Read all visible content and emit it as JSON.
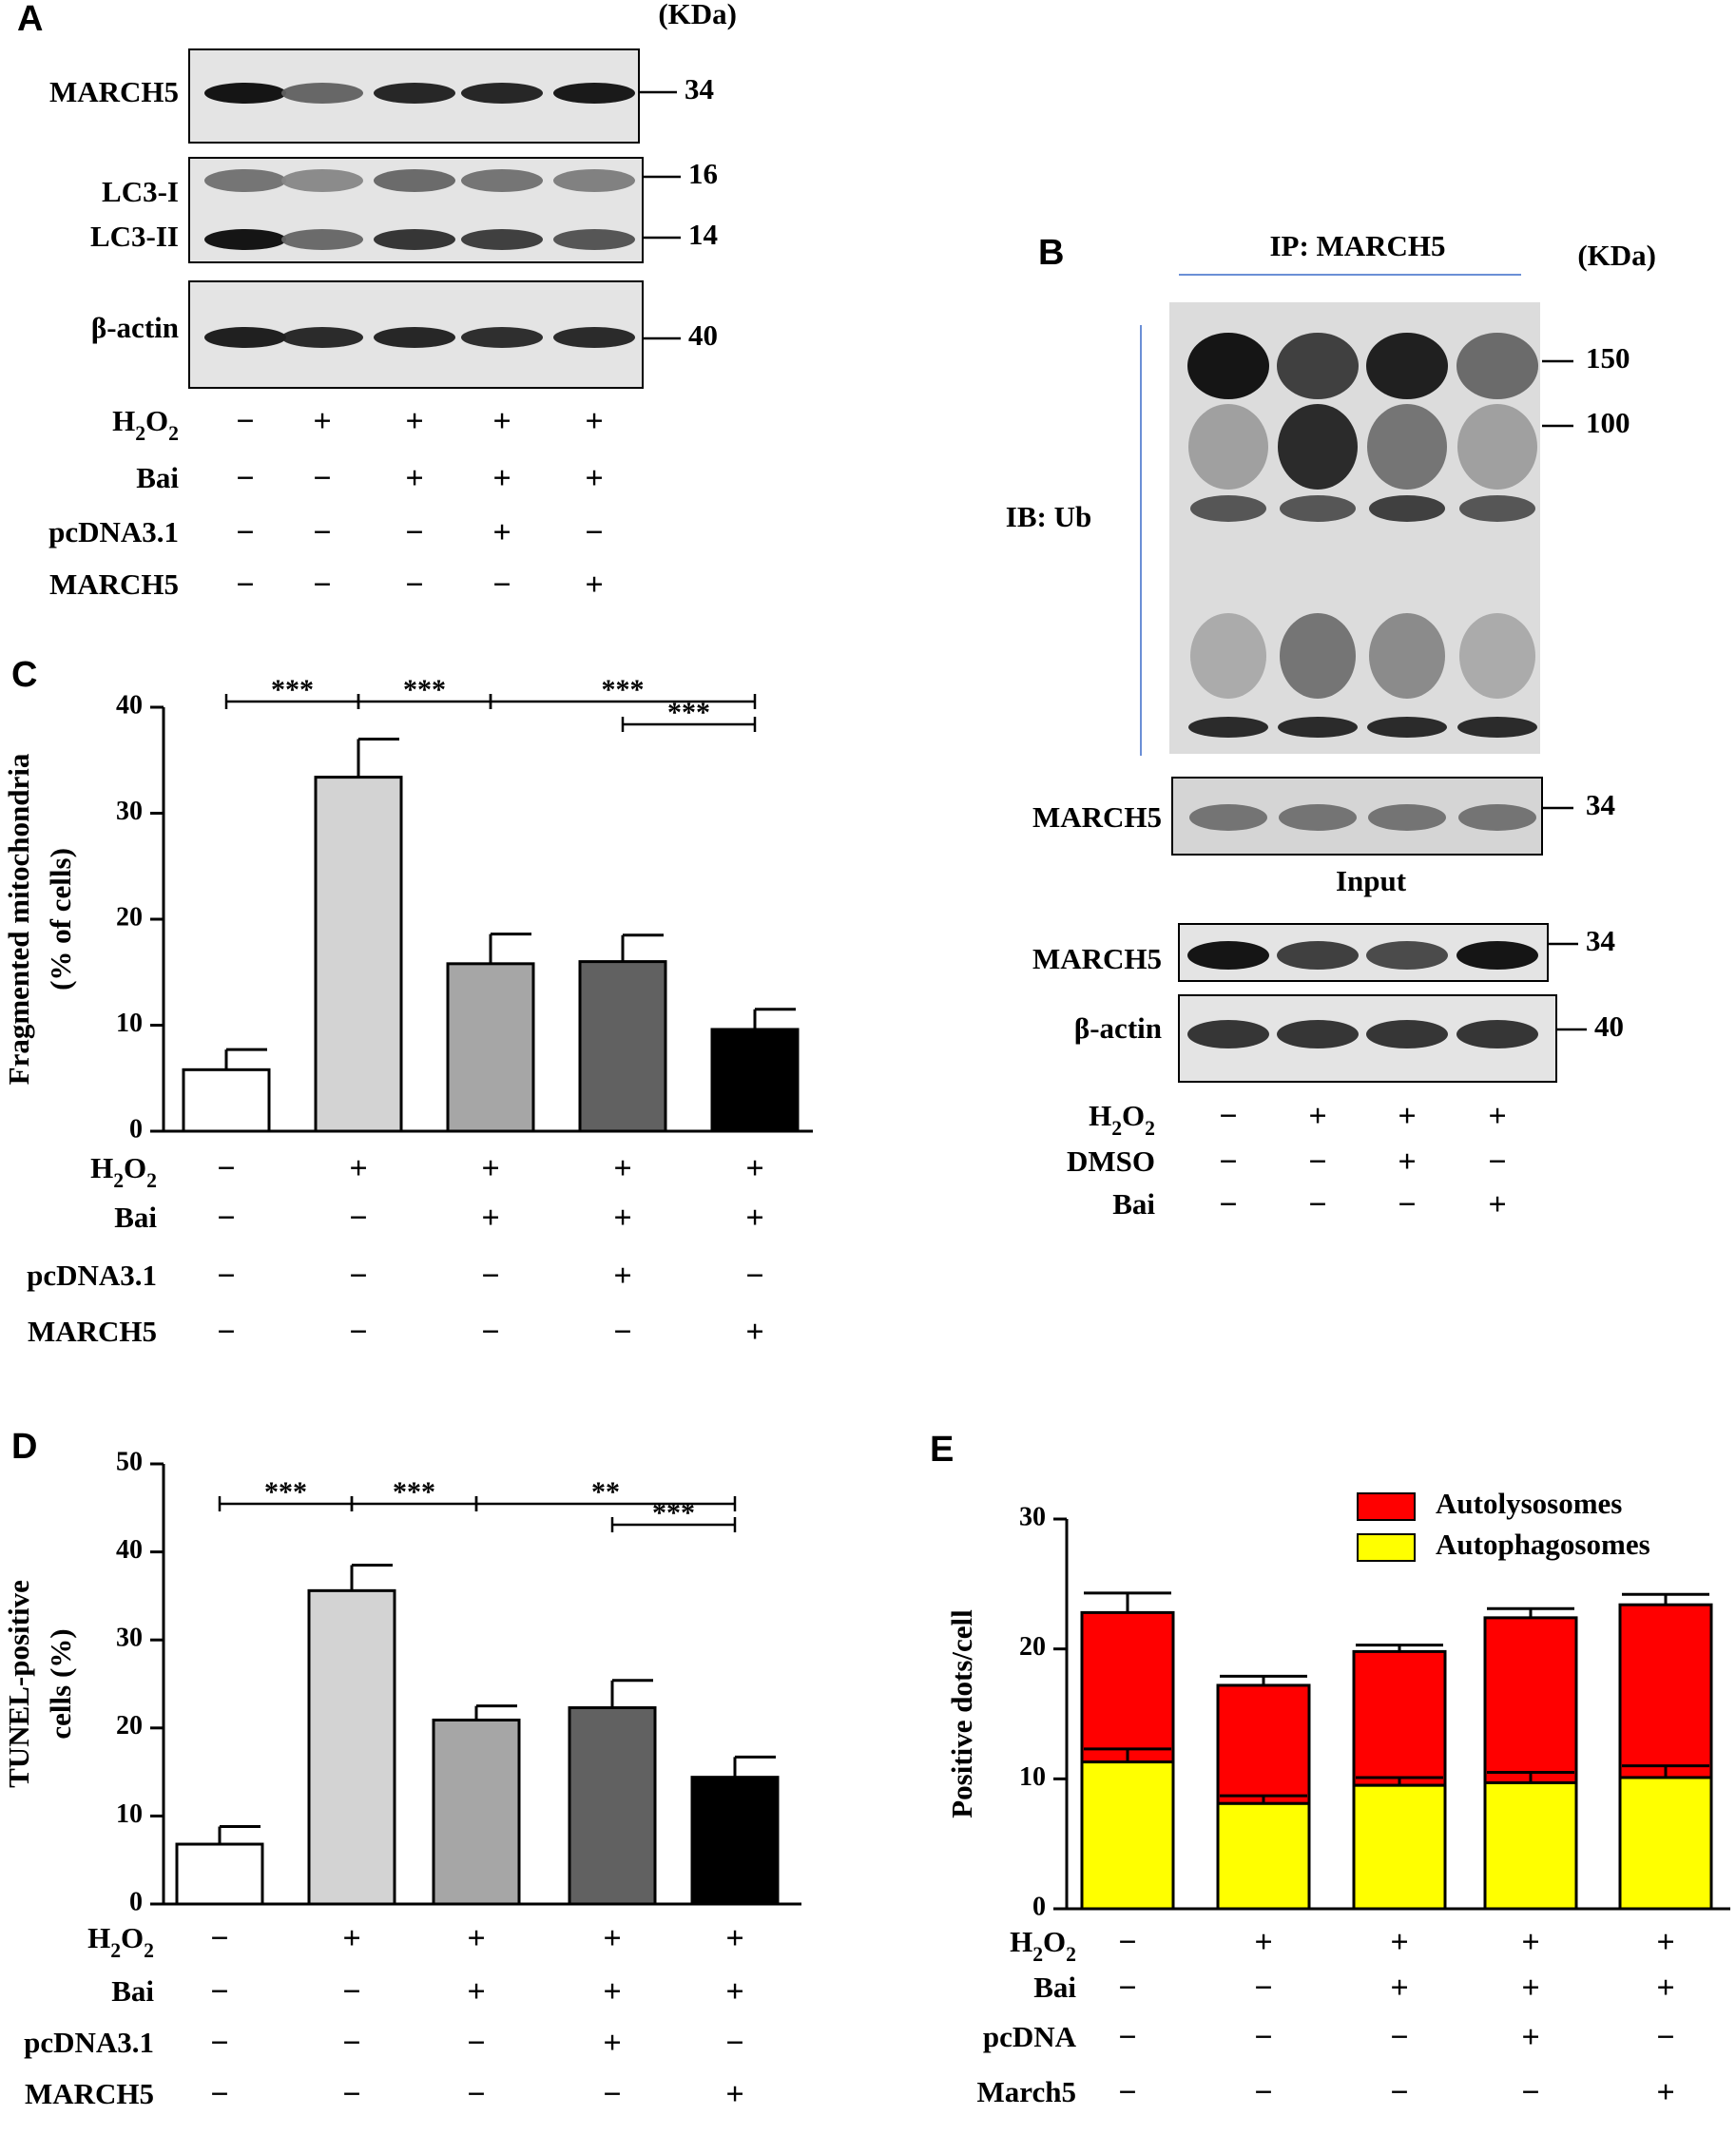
{
  "figure": {
    "panel_labels": [
      "A",
      "B",
      "C",
      "D",
      "E"
    ],
    "kda_label": "(KDa)",
    "panel_a": {
      "blots": [
        {
          "labels": [
            "MARCH5"
          ],
          "markers": [
            "34"
          ],
          "bands": [
            [
              1.0,
              0.62,
              0.92,
              0.92,
              0.98
            ]
          ]
        },
        {
          "labels": [
            "LC3-I",
            "LC3-II"
          ],
          "markers": [
            "16",
            "14"
          ],
          "bands": [
            [
              0.55,
              0.45,
              0.6,
              0.55,
              0.5
            ],
            [
              1.0,
              0.6,
              0.85,
              0.8,
              0.7
            ]
          ]
        },
        {
          "labels": [
            "β-actin"
          ],
          "markers": [
            "40"
          ],
          "bands": [
            [
              0.95,
              0.9,
              0.92,
              0.88,
              0.9
            ]
          ]
        }
      ],
      "conditions": [
        {
          "label": "H2O2",
          "values": [
            "−",
            "+",
            "+",
            "+",
            "+"
          ]
        },
        {
          "label": "Bai",
          "values": [
            "−",
            "−",
            "+",
            "+",
            "+"
          ]
        },
        {
          "label": "pcDNA3.1",
          "values": [
            "−",
            "−",
            "−",
            "+",
            "−"
          ]
        },
        {
          "label": "MARCH5",
          "values": [
            "−",
            "−",
            "−",
            "−",
            "+"
          ]
        }
      ]
    },
    "panel_b": {
      "ip_label": "IP: MARCH5",
      "ib_label": "IB: Ub",
      "ub_markers": [
        "150",
        "100"
      ],
      "ip_march5_label": "MARCH5",
      "ip_march5_marker": "34",
      "input_label": "Input",
      "input_blots": [
        {
          "label": "MARCH5",
          "marker": "34",
          "bands": [
            1.0,
            0.8,
            0.75,
            1.0
          ]
        },
        {
          "label": "β-actin",
          "marker": "40",
          "bands": [
            0.85,
            0.85,
            0.85,
            0.85
          ]
        }
      ],
      "conditions": [
        {
          "label": "H2O2",
          "values": [
            "−",
            "+",
            "+",
            "+"
          ]
        },
        {
          "label": "DMSO",
          "values": [
            "−",
            "−",
            "+",
            "−"
          ]
        },
        {
          "label": "Bai",
          "values": [
            "−",
            "−",
            "−",
            "+"
          ]
        }
      ]
    }
  },
  "chart_data": [
    {
      "panel": "C",
      "type": "bar",
      "ylabel": [
        "Fragmented mitochondria",
        "(% of cells)"
      ],
      "ylim": [
        0,
        40
      ],
      "yticks": [
        0,
        10,
        20,
        30,
        40
      ],
      "values": [
        5.8,
        33.4,
        15.8,
        16.0,
        9.6
      ],
      "errors": [
        1.9,
        3.6,
        2.8,
        2.5,
        1.9
      ],
      "bar_colors": [
        "#ffffff",
        "#d3d3d3",
        "#a6a6a6",
        "#616161",
        "#000000"
      ],
      "significance": [
        {
          "from": 0,
          "to": 1,
          "label": "***",
          "level": 0
        },
        {
          "from": 1,
          "to": 2,
          "label": "***",
          "level": 0
        },
        {
          "from": 2,
          "to": 4,
          "label": "***",
          "level": 0
        },
        {
          "from": 3,
          "to": 4,
          "label": "***",
          "level": 1
        }
      ],
      "conditions": [
        {
          "label": "H2O2",
          "values": [
            "−",
            "+",
            "+",
            "+",
            "+"
          ]
        },
        {
          "label": "Bai",
          "values": [
            "−",
            "−",
            "+",
            "+",
            "+"
          ]
        },
        {
          "label": "pcDNA3.1",
          "values": [
            "−",
            "−",
            "−",
            "+",
            "−"
          ]
        },
        {
          "label": "MARCH5",
          "values": [
            "−",
            "−",
            "−",
            "−",
            "+"
          ]
        }
      ]
    },
    {
      "panel": "D",
      "type": "bar",
      "ylabel": [
        "TUNEL-positive",
        "cells (%)"
      ],
      "ylim": [
        0,
        50
      ],
      "yticks": [
        0,
        10,
        20,
        30,
        40,
        50
      ],
      "values": [
        6.8,
        35.6,
        20.9,
        22.3,
        14.4
      ],
      "errors": [
        2.0,
        2.9,
        1.6,
        3.1,
        2.3
      ],
      "bar_colors": [
        "#ffffff",
        "#d3d3d3",
        "#a6a6a6",
        "#616161",
        "#000000"
      ],
      "significance": [
        {
          "from": 0,
          "to": 1,
          "label": "***",
          "level": 0
        },
        {
          "from": 1,
          "to": 2,
          "label": "***",
          "level": 0
        },
        {
          "from": 2,
          "to": 4,
          "label": "**",
          "level": 0
        },
        {
          "from": 3,
          "to": 4,
          "label": "***",
          "level": 1
        }
      ],
      "conditions": [
        {
          "label": "H2O2",
          "values": [
            "−",
            "+",
            "+",
            "+",
            "+"
          ]
        },
        {
          "label": "Bai",
          "values": [
            "−",
            "−",
            "+",
            "+",
            "+"
          ]
        },
        {
          "label": "pcDNA3.1",
          "values": [
            "−",
            "−",
            "−",
            "+",
            "−"
          ]
        },
        {
          "label": "MARCH5",
          "values": [
            "−",
            "−",
            "−",
            "−",
            "+"
          ]
        }
      ]
    },
    {
      "panel": "E",
      "type": "bar",
      "stacked": true,
      "ylabel": [
        "Positive dots/cell"
      ],
      "ylim": [
        0,
        30
      ],
      "yticks": [
        0,
        10,
        20,
        30
      ],
      "series": [
        {
          "name": "Autophagosomes",
          "color": "#ffff00",
          "values": [
            11.3,
            8.1,
            9.5,
            9.7,
            10.1
          ],
          "errors": [
            1.0,
            0.6,
            0.6,
            0.8,
            0.9
          ]
        },
        {
          "name": "Autolysosomes",
          "color": "#ff0000",
          "values": [
            11.5,
            9.1,
            10.3,
            12.7,
            13.3
          ],
          "errors": [
            1.5,
            0.7,
            0.5,
            0.7,
            0.8
          ]
        }
      ],
      "legend_placement": "top-right",
      "conditions": [
        {
          "label": "H2O2",
          "values": [
            "−",
            "+",
            "+",
            "+",
            "+"
          ]
        },
        {
          "label": "Bai",
          "values": [
            "−",
            "−",
            "+",
            "+",
            "+"
          ]
        },
        {
          "label": "pcDNA",
          "values": [
            "−",
            "−",
            "−",
            "+",
            "−"
          ]
        },
        {
          "label": "March5",
          "values": [
            "−",
            "−",
            "−",
            "−",
            "+"
          ]
        }
      ]
    }
  ]
}
